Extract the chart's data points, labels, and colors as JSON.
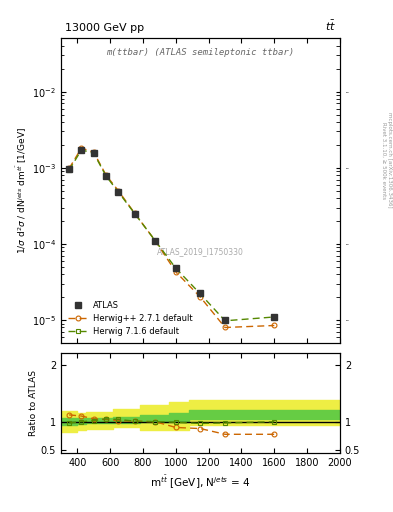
{
  "title_top_left": "13000 GeV pp",
  "title_top_right": "tt",
  "plot_title": "m(ttbar) (ATLAS semileptonic ttbar)",
  "watermark": "ATLAS_2019_I1750330",
  "xlabel": "m$^{t\\bar{t}}$ [GeV], N$^{jets}$ = 4",
  "ylabel_main": "1/$\\sigma$ d$^{2}\\sigma$ / dN$^{jets}$ dm$^{t\\bar{t}}$ [1/GeV]",
  "ylabel_ratio": "Ratio to ATLAS",
  "x_data": [
    350,
    425,
    500,
    575,
    650,
    750,
    875,
    1000,
    1150,
    1300,
    1600
  ],
  "atlas_y": [
    0.00095,
    0.00172,
    0.00155,
    0.00078,
    0.00048,
    0.00025,
    0.00011,
    4.8e-05,
    2.3e-05,
    1e-05,
    1.1e-05
  ],
  "herwig271_y": [
    0.00098,
    0.00182,
    0.0016,
    0.0008,
    0.0005,
    0.000252,
    0.00011,
    4.3e-05,
    2e-05,
    8e-06,
    8.5e-06
  ],
  "herwig716_y": [
    0.00093,
    0.00172,
    0.00155,
    0.00078,
    0.00048,
    0.00025,
    0.00011,
    4.8e-05,
    2.2e-05,
    9.8e-06,
    1.1e-05
  ],
  "ratio_herwig271": [
    1.12,
    1.1,
    1.05,
    1.04,
    1.02,
    1.01,
    1.0,
    0.9,
    0.88,
    0.78,
    0.78
  ],
  "ratio_herwig716": [
    0.98,
    1.0,
    1.02,
    1.05,
    1.04,
    1.01,
    1.0,
    0.99,
    0.97,
    0.98,
    1.0
  ],
  "band_x_steps": [
    300,
    395,
    395,
    455,
    455,
    545,
    545,
    620,
    620,
    780,
    780,
    960,
    960,
    1080,
    1080,
    1430,
    1430,
    2000
  ],
  "band_green_low_steps": [
    0.94,
    0.94,
    0.96,
    0.96,
    0.97,
    0.97,
    0.97,
    0.97,
    0.98,
    0.98,
    1.0,
    1.0,
    1.0,
    1.0,
    1.05,
    1.05,
    1.05,
    1.05
  ],
  "band_green_high_steps": [
    1.06,
    1.06,
    1.06,
    1.06,
    1.07,
    1.07,
    1.07,
    1.07,
    1.08,
    1.08,
    1.12,
    1.12,
    1.15,
    1.15,
    1.2,
    1.2,
    1.2,
    1.2
  ],
  "band_yellow_low_steps": [
    0.82,
    0.82,
    0.86,
    0.86,
    0.88,
    0.88,
    0.88,
    0.88,
    0.9,
    0.9,
    0.86,
    0.86,
    0.86,
    0.86,
    0.95,
    0.95,
    0.95,
    0.95
  ],
  "band_yellow_high_steps": [
    1.18,
    1.18,
    1.16,
    1.16,
    1.17,
    1.17,
    1.17,
    1.17,
    1.22,
    1.22,
    1.3,
    1.3,
    1.35,
    1.35,
    1.38,
    1.38,
    1.38,
    1.38
  ],
  "color_atlas": "#333333",
  "color_herwig271": "#cc6600",
  "color_herwig716": "#558800",
  "color_band_green": "#66cc44",
  "color_band_yellow": "#eeee44",
  "xlim": [
    300,
    2000
  ],
  "ylim_main": [
    5e-06,
    0.05
  ],
  "ylim_ratio": [
    0.45,
    2.2
  ],
  "right_text1": "Rivet 3.1.10, ≥ 500k events",
  "right_text2": "mcplots.cern.ch [arXiv:1306.3436]"
}
